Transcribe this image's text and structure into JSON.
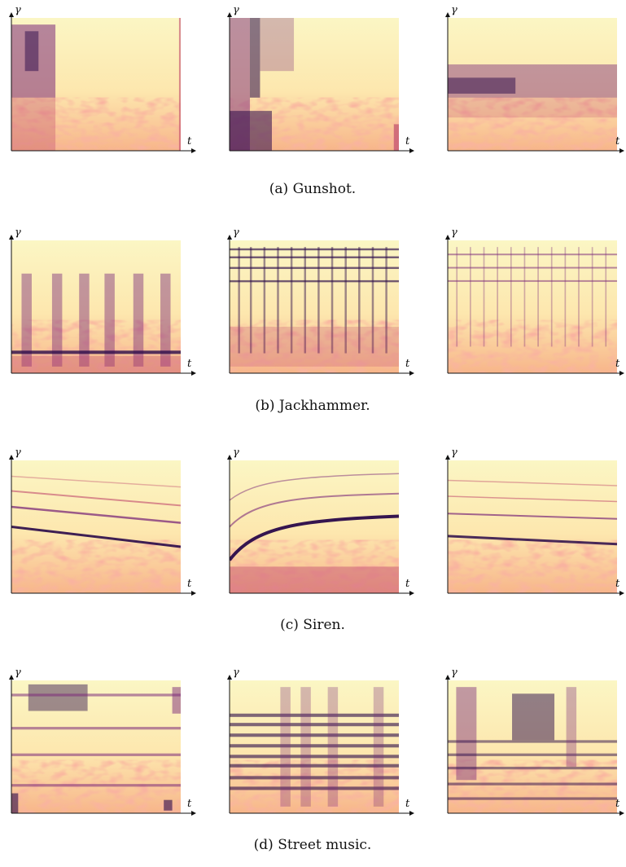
{
  "axis_labels": {
    "y": "γ",
    "x": "t"
  },
  "rows": [
    {
      "caption": "(a) Gunshot."
    },
    {
      "caption": "(b) Jackhammer."
    },
    {
      "caption": "(c) Siren."
    },
    {
      "caption": "(d) Street music."
    }
  ]
}
